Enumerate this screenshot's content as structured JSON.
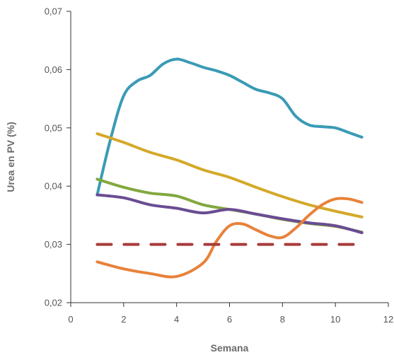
{
  "chart_data": {
    "type": "line",
    "title": "",
    "xlabel": "Semana",
    "ylabel": "Urea en PV (%)",
    "xlim": [
      0,
      12
    ],
    "ylim": [
      0.02,
      0.07
    ],
    "grid": false,
    "x_ticks": [
      0,
      2,
      4,
      6,
      8,
      10,
      12
    ],
    "x_tick_labels": [
      "0",
      "2",
      "4",
      "6",
      "8",
      "10",
      "12"
    ],
    "y_ticks": [
      0.02,
      0.03,
      0.04,
      0.05,
      0.06,
      0.07
    ],
    "y_tick_labels": [
      "0,02",
      "0,03",
      "0,04",
      "0,05",
      "0,06",
      "0,07"
    ],
    "series": [
      {
        "color": "#3a9bb5",
        "style": "solid",
        "x": [
          1,
          1.5,
          2,
          2.5,
          3,
          3.5,
          4,
          4.5,
          5,
          5.5,
          6,
          6.5,
          7,
          7.5,
          8,
          8.5,
          9,
          9.5,
          10,
          10.5,
          11
        ],
        "values": [
          0.0385,
          0.048,
          0.0555,
          0.058,
          0.059,
          0.061,
          0.0618,
          0.0612,
          0.0604,
          0.0598,
          0.059,
          0.0578,
          0.0566,
          0.056,
          0.055,
          0.052,
          0.0505,
          0.0502,
          0.05,
          0.0492,
          0.0484
        ]
      },
      {
        "color": "#d4a92a",
        "style": "solid",
        "x": [
          1,
          2,
          3,
          4,
          5,
          6,
          7,
          8,
          9,
          10,
          11
        ],
        "values": [
          0.049,
          0.0475,
          0.0458,
          0.0445,
          0.0428,
          0.0415,
          0.0398,
          0.0382,
          0.0368,
          0.0357,
          0.0347
        ]
      },
      {
        "color": "#82a83e",
        "style": "solid",
        "x": [
          1,
          2,
          3,
          4,
          5,
          6,
          7,
          8,
          9,
          10,
          11
        ],
        "values": [
          0.0412,
          0.0398,
          0.0388,
          0.0383,
          0.0368,
          0.036,
          0.0352,
          0.0343,
          0.0336,
          0.0331,
          0.0321
        ]
      },
      {
        "color": "#6a4c93",
        "style": "solid",
        "x": [
          1,
          2,
          3,
          4,
          5,
          6,
          7,
          8,
          9,
          10,
          11
        ],
        "values": [
          0.0385,
          0.038,
          0.0368,
          0.0362,
          0.0354,
          0.036,
          0.0352,
          0.0344,
          0.0337,
          0.0332,
          0.032
        ]
      },
      {
        "color": "#e8823a",
        "style": "solid",
        "x": [
          1,
          2,
          3,
          4,
          5,
          5.5,
          6,
          6.5,
          7,
          7.5,
          8,
          8.5,
          9,
          9.5,
          10,
          10.5,
          11
        ],
        "values": [
          0.027,
          0.0258,
          0.025,
          0.0245,
          0.0268,
          0.0305,
          0.0332,
          0.0335,
          0.0325,
          0.0315,
          0.0312,
          0.0328,
          0.035,
          0.0368,
          0.0378,
          0.0378,
          0.0372
        ]
      },
      {
        "color": "#a83a3a",
        "style": "dashed",
        "x": [
          1,
          11
        ],
        "values": [
          0.03,
          0.03
        ]
      }
    ]
  }
}
